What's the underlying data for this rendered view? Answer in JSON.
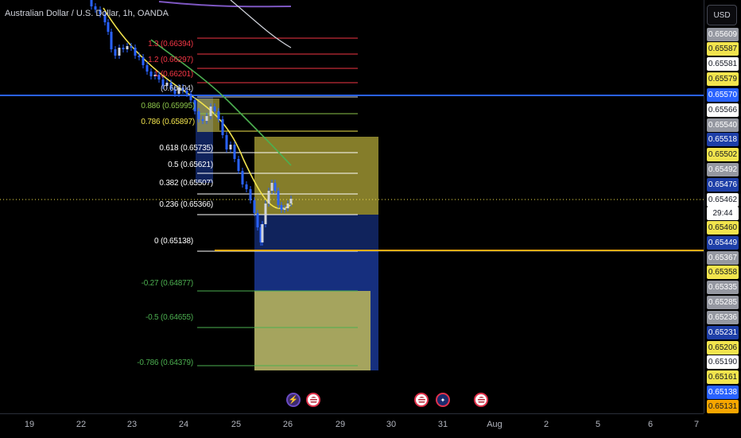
{
  "header": {
    "title": "Australian Dollar / U.S. Dollar, 1h, OANDA",
    "currency": "USD"
  },
  "fib_levels": [
    {
      "label": "1.3 (0.66394)",
      "color": "#f23645"
    },
    {
      "label": "1.2 (0.66297)",
      "color": "#f23645"
    },
    {
      "label": "1 (0.66201)",
      "color": "#f23645"
    },
    {
      "label": "(0.66104)",
      "color": "#d1d4dc"
    },
    {
      "label": "0.886 (0.65995)",
      "color": "#8bc34a"
    },
    {
      "label": "0.786 (0.65897)",
      "color": "#f2e44d"
    },
    {
      "label": "0.618 (0.65735)",
      "color": "#ffffff"
    },
    {
      "label": "0.5 (0.65621)",
      "color": "#ffffff"
    },
    {
      "label": "0.382 (0.65507)",
      "color": "#ffffff"
    },
    {
      "label": "0.236 (0.65366)",
      "color": "#ffffff"
    },
    {
      "label": "0 (0.65138)",
      "color": "#ffffff"
    },
    {
      "label": "-0.27 (0.64877)",
      "color": "#4caf50"
    },
    {
      "label": "-0.5 (0.64655)",
      "color": "#4caf50"
    },
    {
      "label": "-0.786 (0.64379)",
      "color": "#4caf50"
    }
  ],
  "price_labels": [
    {
      "text": "0.65609",
      "bg": "#9598a1",
      "fg": "#ffffff"
    },
    {
      "text": "0.65587",
      "bg": "#f2e44d",
      "fg": "#131722"
    },
    {
      "text": "0.65581",
      "bg": "#ffffff",
      "fg": "#131722"
    },
    {
      "text": "0.65579",
      "bg": "#f2e44d",
      "fg": "#131722"
    },
    {
      "text": "0.65570",
      "bg": "#2962ff",
      "fg": "#ffffff"
    },
    {
      "text": "0.65566",
      "bg": "#ffffff",
      "fg": "#131722"
    },
    {
      "text": "0.65540",
      "bg": "#9598a1",
      "fg": "#ffffff"
    },
    {
      "text": "0.65518",
      "bg": "#1e3fa8",
      "fg": "#ffffff"
    },
    {
      "text": "0.65502",
      "bg": "#f2e44d",
      "fg": "#131722"
    },
    {
      "text": "0.65492",
      "bg": "#9598a1",
      "fg": "#ffffff"
    },
    {
      "text": "0.65476",
      "bg": "#1e3fa8",
      "fg": "#ffffff"
    },
    {
      "text": "0.65462",
      "bg": "#ffffff",
      "fg": "#131722"
    },
    {
      "text": "29:44",
      "bg": "#ffffff",
      "fg": "#131722"
    },
    {
      "text": "0.65460",
      "bg": "#f2e44d",
      "fg": "#131722"
    },
    {
      "text": "0.65449",
      "bg": "#1e3fa8",
      "fg": "#ffffff"
    },
    {
      "text": "0.65367",
      "bg": "#9598a1",
      "fg": "#ffffff"
    },
    {
      "text": "0.65358",
      "bg": "#f2e44d",
      "fg": "#131722"
    },
    {
      "text": "0.65335",
      "bg": "#9598a1",
      "fg": "#ffffff"
    },
    {
      "text": "0.65285",
      "bg": "#9598a1",
      "fg": "#ffffff"
    },
    {
      "text": "0.65236",
      "bg": "#9598a1",
      "fg": "#ffffff"
    },
    {
      "text": "0.65231",
      "bg": "#1e3fa8",
      "fg": "#ffffff"
    },
    {
      "text": "0.65206",
      "bg": "#f2e44d",
      "fg": "#131722"
    },
    {
      "text": "0.65190",
      "bg": "#ffffff",
      "fg": "#131722"
    },
    {
      "text": "0.65161",
      "bg": "#f2e44d",
      "fg": "#131722"
    },
    {
      "text": "0.65138",
      "bg": "#2962ff",
      "fg": "#ffffff"
    },
    {
      "text": "0.65131",
      "bg": "#f7a600",
      "fg": "#131722"
    }
  ],
  "time_labels": [
    "19",
    "22",
    "23",
    "24",
    "25",
    "26",
    "29",
    "30",
    "31",
    "Aug",
    "2",
    "5",
    "6",
    "7"
  ],
  "events": [
    {
      "icon": "earnings-icon"
    },
    {
      "icon": "us-flag-icon"
    },
    {
      "icon": "us-flag-icon"
    },
    {
      "icon": "au-flag-icon"
    },
    {
      "icon": "us-flag-icon"
    }
  ],
  "colors": {
    "background": "#000000",
    "candle": "#2962ff",
    "ma_yellow": "#f2e44d",
    "ma_green": "#4caf50",
    "ma_white": "#d1d4dc",
    "ma_purple": "#7e57c2",
    "position_target": "#f2e44d",
    "position_stop": "#1e3fa8"
  }
}
